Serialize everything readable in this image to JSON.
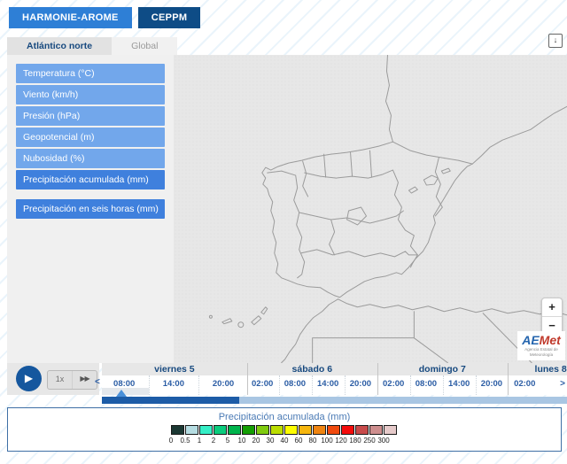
{
  "header": {
    "model_buttons": [
      {
        "id": "harmonie",
        "label": "HARMONIE-AROME",
        "color": "#2e7fd6"
      },
      {
        "id": "ceppm",
        "label": "CEPPM",
        "color": "#0e4c86"
      }
    ]
  },
  "tabs": [
    {
      "id": "atlantico-norte",
      "label": "Atlántico norte",
      "active": true
    },
    {
      "id": "global",
      "label": "Global",
      "active": false
    }
  ],
  "sidebar": {
    "items": [
      {
        "id": "temperatura",
        "label": "Temperatura (°C)",
        "highlight": false,
        "separated": false
      },
      {
        "id": "viento",
        "label": "Viento (km/h)",
        "highlight": false,
        "separated": false
      },
      {
        "id": "presion",
        "label": "Presión (hPa)",
        "highlight": false,
        "separated": false
      },
      {
        "id": "geopotencial",
        "label": "Geopotencial (m)",
        "highlight": false,
        "separated": false
      },
      {
        "id": "nubosidad",
        "label": "Nubosidad (%)",
        "highlight": false,
        "separated": false
      },
      {
        "id": "precipitacion-acumulada",
        "label": "Precipitación acumulada (mm)",
        "highlight": true,
        "separated": false
      },
      {
        "id": "precipitacion-seis-horas",
        "label": "Precipitación en seis horas (mm)",
        "highlight": true,
        "separated": true
      }
    ],
    "item_color": "#72a7eb",
    "item_highlight_color": "#3f80dd"
  },
  "map": {
    "zoom_in_label": "+",
    "zoom_out_label": "−",
    "logo_text_a": "AE",
    "logo_text_b": "Met",
    "logo_caption": "Agencia Estatal de Meteorología"
  },
  "icons": {
    "play": "▶",
    "fast_forward": "▶▶",
    "prev": "<",
    "next": ">",
    "download": "↓"
  },
  "player": {
    "speed_label": "1x"
  },
  "timeline": {
    "days": [
      {
        "label": "viernes 5",
        "start_pct": 0,
        "label_pct": 15.6,
        "ticks": [
          {
            "t": "08:00",
            "pct": 4.8
          },
          {
            "t": "14:00",
            "pct": 15.4
          },
          {
            "t": "20:00",
            "pct": 26.1
          }
        ]
      },
      {
        "label": "sábado 6",
        "start_pct": 31.2,
        "label_pct": 45.2,
        "ticks": [
          {
            "t": "02:00",
            "pct": 34.5
          },
          {
            "t": "08:00",
            "pct": 41.5
          },
          {
            "t": "14:00",
            "pct": 48.6
          },
          {
            "t": "20:00",
            "pct": 55.6
          }
        ]
      },
      {
        "label": "domingo 7",
        "start_pct": 59.2,
        "label_pct": 73.2,
        "ticks": [
          {
            "t": "02:00",
            "pct": 62.7
          },
          {
            "t": "08:00",
            "pct": 69.7
          },
          {
            "t": "14:00",
            "pct": 76.8
          },
          {
            "t": "20:00",
            "pct": 83.8
          }
        ]
      },
      {
        "label": "lunes 8",
        "start_pct": 87.2,
        "label_pct": 96.5,
        "ticks": [
          {
            "t": "02:00",
            "pct": 90.9
          }
        ]
      }
    ],
    "separators_pct": [
      10.1,
      20.8,
      38.0,
      45.1,
      52.1,
      66.2,
      73.3,
      80.3
    ],
    "highlight": {
      "start_pct": 0,
      "end_pct": 10.1
    },
    "progress": {
      "dark_end_pct": 29.5,
      "dark_color": "#1d5ca7",
      "light_color": "#a9c6e3",
      "playhead_pct": 4.2,
      "playhead_color": "#4a90d9"
    }
  },
  "legend": {
    "title": "Precipitación acumulada (mm)",
    "stops": [
      {
        "label": "0",
        "color": "#1b3833"
      },
      {
        "label": "0.5",
        "color": "#b5dde2"
      },
      {
        "label": "1",
        "color": "#35eec6"
      },
      {
        "label": "2",
        "color": "#0bcc7d"
      },
      {
        "label": "5",
        "color": "#00b44c"
      },
      {
        "label": "10",
        "color": "#149e04"
      },
      {
        "label": "20",
        "color": "#7fcb0f"
      },
      {
        "label": "30",
        "color": "#bbdd00"
      },
      {
        "label": "40",
        "color": "#fdfd00"
      },
      {
        "label": "60",
        "color": "#f6b60e"
      },
      {
        "label": "80",
        "color": "#ef8410"
      },
      {
        "label": "100",
        "color": "#f04a0e"
      },
      {
        "label": "120",
        "color": "#f40b0b"
      },
      {
        "label": "180",
        "color": "#c84b4b"
      },
      {
        "label": "250",
        "color": "#ce8e8e"
      },
      {
        "label": "300",
        "color": "#e6caca"
      }
    ]
  }
}
